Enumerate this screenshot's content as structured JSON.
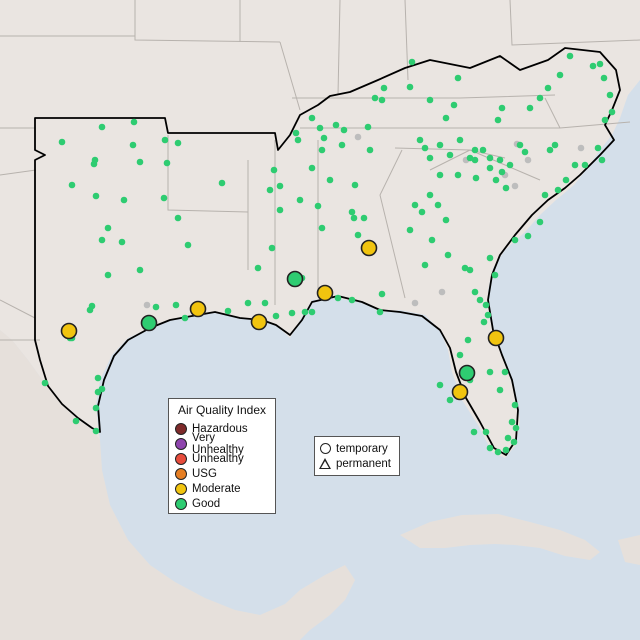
{
  "map": {
    "colors": {
      "land": "#eae5e1",
      "land_relief": "#e2dbd6",
      "water": "#d4dfea",
      "state_border": "#b7b2ad",
      "region_outline": "#000000",
      "inactive_site": "#bdbdbd"
    }
  },
  "legend": {
    "aqi_title": "Air Quality Index",
    "aqi_levels": [
      {
        "label": "Hazardous",
        "color": "#7e2a2a"
      },
      {
        "label": "Very Unhealthy",
        "color": "#8e44ad"
      },
      {
        "label": "Unhealthy",
        "color": "#e74c3c"
      },
      {
        "label": "USG",
        "color": "#e67e22"
      },
      {
        "label": "Moderate",
        "color": "#f1c40f"
      },
      {
        "label": "Good",
        "color": "#2ecc71"
      }
    ],
    "types": [
      {
        "label": "temporary",
        "icon": "circle-icon"
      },
      {
        "label": "permanent",
        "icon": "triangle-icon"
      }
    ]
  }
}
